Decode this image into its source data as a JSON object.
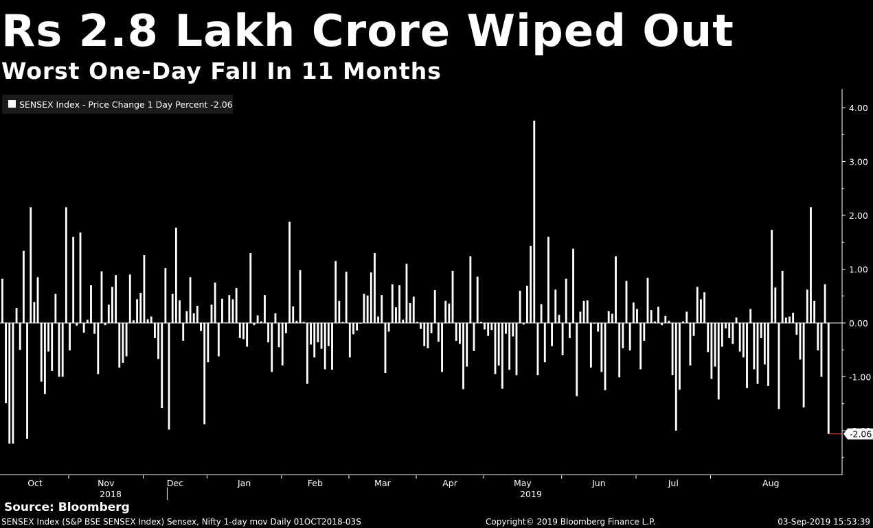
{
  "title": "Rs 2.8 Lakh Crore Wiped Out",
  "subtitle": "Worst One-Day Fall In 11 Months",
  "source": "Source: Bloomberg",
  "footer": {
    "left": "SENSEX Index (S&P BSE SENSEX Index) Sensex, Nifty 1-day mov  Daily 01OCT2018-03S",
    "center": "Copyright© 2019 Bloomberg Finance L.P.",
    "right": "03-Sep-2019 15:53:39"
  },
  "colors": {
    "background": "#000000",
    "bars": "#ffffff",
    "last_marker": "#e8552d"
  },
  "chart_data": {
    "type": "bar",
    "legend": "SENSEX Index - Price Change 1 Day Percent -2.06",
    "legend_position": "top-left",
    "y_axis_side": "right",
    "ylim": [
      -2.8,
      4.2
    ],
    "yticks": [
      4.0,
      3.0,
      2.0,
      1.0,
      0.0,
      -1.0,
      -2.0
    ],
    "ytick_labels": [
      "4.00",
      "3.00",
      "2.00",
      "1.00",
      "0.00",
      "-1.00",
      "-2.00"
    ],
    "last_value_label": "-2.06",
    "month_labels": [
      "Oct",
      "Nov",
      "Dec",
      "Jan",
      "Feb",
      "Mar",
      "Apr",
      "May",
      "Jun",
      "Jul",
      "Aug"
    ],
    "month_start_index": [
      0,
      19,
      40,
      58,
      79,
      98,
      117,
      136,
      158,
      179,
      200
    ],
    "year_labels": [
      "2018",
      "2019"
    ],
    "grid": false,
    "values": [
      0.82,
      -1.49,
      -2.24,
      -2.24,
      0.28,
      -0.5,
      1.34,
      -2.15,
      2.15,
      0.39,
      0.85,
      -1.09,
      -1.32,
      -0.53,
      -0.89,
      0.54,
      -1.0,
      -1.0,
      2.15,
      -0.51,
      1.6,
      -0.05,
      1.68,
      -0.18,
      0.06,
      0.7,
      -0.2,
      -0.95,
      0.96,
      -0.04,
      0.34,
      0.67,
      0.89,
      -0.83,
      -0.74,
      -0.62,
      0.9,
      0.05,
      0.44,
      0.56,
      1.26,
      0.07,
      0.12,
      -0.28,
      -0.67,
      -1.58,
      1.02,
      -1.98,
      0.54,
      1.77,
      0.42,
      -0.33,
      0.22,
      0.85,
      0.18,
      0.32,
      -0.15,
      -1.88,
      -0.73,
      0.34,
      0.75,
      -0.62,
      0.45,
      0.01,
      0.52,
      0.44,
      0.65,
      -0.28,
      -0.3,
      -0.44,
      1.3,
      -0.04,
      0.14,
      0.03,
      0.52,
      -0.36,
      -0.91,
      0.18,
      -0.45,
      -0.79,
      -0.19,
      1.88,
      0.31,
      0.04,
      0.98,
      0.02,
      -1.13,
      -0.4,
      -0.64,
      -0.36,
      -0.48,
      -0.86,
      -0.43,
      -0.87,
      1.15,
      0.41,
      0.02,
      0.95,
      -0.64,
      -0.21,
      -0.14,
      0.0,
      0.54,
      0.51,
      0.94,
      1.3,
      0.12,
      0.52,
      -0.93,
      -0.16,
      0.72,
      0.29,
      0.7,
      0.06,
      1.1,
      0.37,
      0.49,
      0.02,
      -0.11,
      -0.43,
      -0.47,
      -0.19,
      0.61,
      -0.35,
      -0.91,
      0.41,
      0.36,
      0.97,
      -0.33,
      -0.39,
      -1.23,
      -0.81,
      1.24,
      -0.52,
      0.86,
      0.02,
      -0.12,
      -0.24,
      -0.13,
      -0.95,
      -0.79,
      -1.22,
      -0.2,
      -0.87,
      -0.25,
      -0.97,
      0.6,
      -0.03,
      0.69,
      1.43,
      3.76,
      -0.97,
      0.35,
      -0.73,
      1.6,
      -0.43,
      0.62,
      0.15,
      -0.6,
      0.82,
      -0.28,
      1.38,
      -1.36,
      0.21,
      0.41,
      0.42,
      -0.83,
      0.0,
      -0.16,
      -0.91,
      -1.25,
      0.22,
      0.17,
      1.24,
      -1.01,
      -0.47,
      0.78,
      -0.51,
      0.38,
      0.26,
      -0.86,
      -0.33,
      0.84,
      0.24,
      0.03,
      0.3,
      -0.04,
      0.13,
      0.04,
      -0.97,
      -2.0,
      -1.24,
      0.03,
      0.21,
      -0.79,
      -0.24,
      0.67,
      0.44,
      0.57,
      -0.54,
      -1.04,
      -0.81,
      -1.42,
      -0.44,
      -0.1,
      -0.28,
      -0.39,
      0.1,
      -0.53,
      -0.64,
      -1.21,
      0.26,
      -0.86,
      -1.13,
      -0.28,
      -0.77,
      -1.17,
      1.73,
      0.66,
      -1.6,
      0.97,
      0.1,
      0.12,
      0.19,
      -0.22,
      -0.68,
      -1.57,
      0.62,
      2.15,
      0.41,
      -0.51,
      -1.0,
      0.72,
      -2.06
    ]
  }
}
